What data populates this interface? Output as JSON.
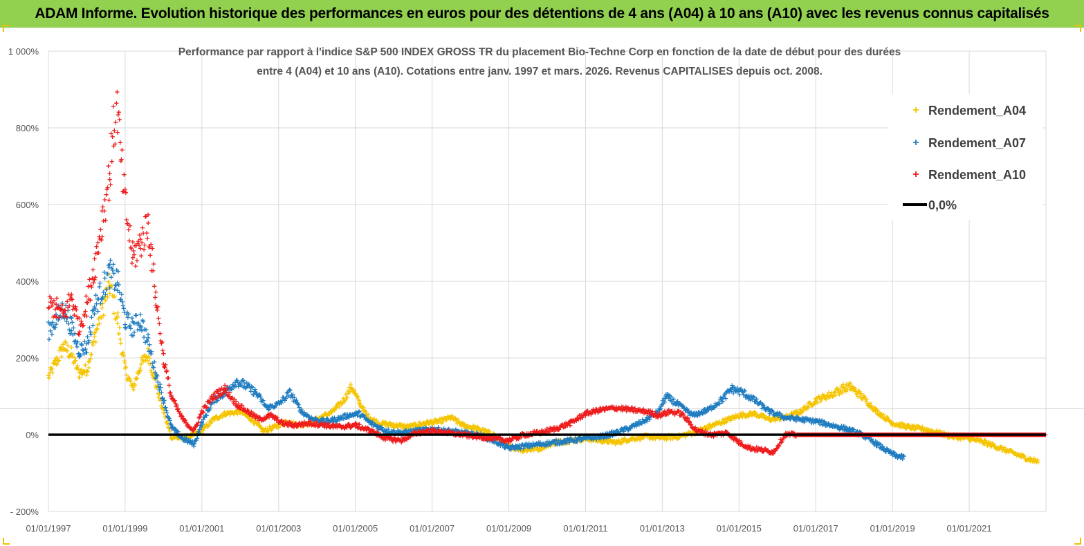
{
  "header": {
    "title": "ADAM Informe. Evolution historique des performances en euros pour des détentions de 4 ans (A04) à 10 ans (A10) avec les revenus connus capitalisés"
  },
  "chart_data": {
    "type": "scatter",
    "title_lines": [
      "Performance par rapport à l'indice S&P 500 INDEX GROSS TR  du placement Bio-Techne Corp en fonction de la date de début pour des durées",
      "entre 4 (A04) et 10 ans (A10). Cotations entre janv. 1997 et mars. 2026. Revenus CAPITALISES depuis oct. 2008."
    ],
    "xlabel": "",
    "ylabel": "",
    "xlim": [
      1997.0,
      2023.0
    ],
    "ylim": [
      -200,
      1000
    ],
    "y_ticks": [
      -200,
      0,
      200,
      400,
      600,
      800,
      1000
    ],
    "y_tick_labels": [
      "- 200%",
      "0%",
      "200%",
      "400%",
      "600%",
      "800%",
      "1 000%"
    ],
    "x_ticks": [
      1997,
      1999,
      2001,
      2003,
      2005,
      2007,
      2009,
      2011,
      2013,
      2015,
      2017,
      2019,
      2021
    ],
    "x_tick_labels": [
      "01/01/1997",
      "01/01/1999",
      "01/01/2001",
      "01/01/2003",
      "01/01/2005",
      "01/01/2007",
      "01/01/2009",
      "01/01/2011",
      "01/01/2013",
      "01/01/2015",
      "01/01/2017",
      "01/01/2019",
      "01/01/2021"
    ],
    "grid": true,
    "legend_position": "top-right",
    "legend": [
      "Rendement_A04",
      "Rendement_A07",
      "Rendement_A10",
      "0,0%"
    ],
    "series": [
      {
        "name": "Rendement_A04",
        "color": "#f5c400",
        "marker": "plus",
        "x": [
          1997.0,
          1997.2,
          1997.4,
          1997.6,
          1997.8,
          1998.0,
          1998.2,
          1998.4,
          1998.6,
          1998.8,
          1999.0,
          1999.2,
          1999.4,
          1999.6,
          1999.8,
          2000.0,
          2000.2,
          2000.5,
          2000.8,
          2001.0,
          2001.3,
          2001.6,
          2002.0,
          2002.3,
          2002.6,
          2002.9,
          2003.2,
          2003.5,
          2003.8,
          2004.1,
          2004.4,
          2004.7,
          2004.9,
          2005.1,
          2005.3,
          2005.6,
          2006.0,
          2006.4,
          2006.8,
          2007.2,
          2007.5,
          2007.8,
          2008.2,
          2008.6,
          2009.0,
          2009.4,
          2009.8,
          2010.2,
          2010.6,
          2011.0,
          2011.4,
          2011.8,
          2012.2,
          2012.6,
          2013.0,
          2013.4,
          2013.8,
          2014.2,
          2014.6,
          2015.0,
          2015.4,
          2015.8,
          2016.2,
          2016.6,
          2017.0,
          2017.4,
          2017.7,
          2017.9,
          2018.2,
          2018.6,
          2019.0,
          2019.4,
          2019.8,
          2020.2,
          2020.6,
          2021.0,
          2021.4,
          2021.8,
          2022.2,
          2022.6,
          2022.8
        ],
        "y": [
          150,
          190,
          230,
          210,
          160,
          170,
          250,
          330,
          390,
          300,
          170,
          120,
          180,
          210,
          130,
          60,
          -5,
          -10,
          0,
          10,
          40,
          55,
          60,
          40,
          10,
          20,
          35,
          25,
          30,
          45,
          60,
          90,
          125,
          85,
          50,
          30,
          25,
          20,
          30,
          35,
          45,
          25,
          15,
          0,
          -30,
          -40,
          -35,
          -20,
          -15,
          -10,
          -15,
          -20,
          -10,
          -5,
          -8,
          -5,
          5,
          20,
          35,
          50,
          55,
          40,
          45,
          60,
          90,
          105,
          120,
          125,
          100,
          60,
          30,
          20,
          15,
          5,
          -5,
          -10,
          -20,
          -35,
          -50,
          -65,
          -70
        ]
      },
      {
        "name": "Rendement_A07",
        "color": "#1f7cc0",
        "marker": "plus",
        "x": [
          1997.0,
          1997.2,
          1997.4,
          1997.6,
          1997.8,
          1998.0,
          1998.2,
          1998.4,
          1998.6,
          1998.8,
          1999.0,
          1999.2,
          1999.4,
          1999.6,
          1999.8,
          2000.0,
          2000.2,
          2000.5,
          2000.8,
          2001.0,
          2001.3,
          2001.6,
          2001.9,
          2002.1,
          2002.4,
          2002.7,
          2003.0,
          2003.3,
          2003.6,
          2003.9,
          2004.2,
          2004.5,
          2004.8,
          2005.1,
          2005.4,
          2005.8,
          2006.2,
          2006.6,
          2007.0,
          2007.4,
          2007.8,
          2008.2,
          2008.6,
          2009.0,
          2009.4,
          2009.8,
          2010.2,
          2010.6,
          2011.0,
          2011.4,
          2011.8,
          2012.2,
          2012.6,
          2012.9,
          2013.1,
          2013.4,
          2013.8,
          2014.2,
          2014.6,
          2014.8,
          2015.1,
          2015.4,
          2015.8,
          2016.2,
          2016.6,
          2017.0,
          2017.4,
          2017.8,
          2018.2,
          2018.6,
          2018.9,
          2019.1,
          2019.3
        ],
        "y": [
          270,
          300,
          330,
          280,
          220,
          230,
          330,
          380,
          420,
          400,
          300,
          280,
          300,
          240,
          160,
          90,
          20,
          -10,
          -25,
          30,
          90,
          110,
          140,
          130,
          110,
          70,
          80,
          110,
          60,
          40,
          35,
          40,
          50,
          55,
          30,
          10,
          5,
          10,
          15,
          10,
          5,
          0,
          -15,
          -35,
          -30,
          -25,
          -20,
          -15,
          -10,
          -5,
          5,
          20,
          40,
          60,
          100,
          80,
          50,
          65,
          95,
          120,
          110,
          90,
          60,
          45,
          40,
          35,
          25,
          15,
          0,
          -25,
          -45,
          -55,
          -60
        ]
      },
      {
        "name": "Rendement_A10",
        "color": "#ee1c1c",
        "marker": "plus",
        "x": [
          1997.0,
          1997.2,
          1997.4,
          1997.6,
          1997.8,
          1998.0,
          1998.2,
          1998.4,
          1998.6,
          1998.7,
          1998.8,
          1998.9,
          1999.0,
          1999.2,
          1999.4,
          1999.6,
          1999.8,
          2000.0,
          2000.2,
          2000.5,
          2000.8,
          2001.0,
          2001.3,
          2001.6,
          2001.9,
          2002.2,
          2002.5,
          2002.8,
          2003.1,
          2003.4,
          2003.8,
          2004.2,
          2004.6,
          2005.0,
          2005.4,
          2005.8,
          2006.2,
          2006.6,
          2007.0,
          2007.4,
          2007.8,
          2008.2,
          2008.6,
          2009.0,
          2009.4,
          2009.8,
          2010.2,
          2010.6,
          2011.0,
          2011.4,
          2011.8,
          2012.2,
          2012.6,
          2012.9,
          2013.2,
          2013.5,
          2013.9,
          2014.3,
          2014.7,
          2015.0,
          2015.3,
          2015.6,
          2015.9,
          2016.2,
          2016.6,
          2017.0,
          2017.5,
          2018.0,
          2018.5,
          2019.0,
          2019.5,
          2020.0,
          2020.5,
          2021.0,
          2021.5,
          2022.0,
          2022.5,
          2023.0
        ],
        "y": [
          340,
          330,
          310,
          360,
          280,
          340,
          440,
          560,
          680,
          800,
          850,
          700,
          600,
          460,
          500,
          550,
          360,
          200,
          100,
          40,
          10,
          60,
          100,
          120,
          80,
          60,
          40,
          50,
          30,
          25,
          30,
          25,
          20,
          25,
          10,
          -10,
          -15,
          5,
          10,
          5,
          0,
          -5,
          -10,
          -15,
          0,
          5,
          15,
          30,
          55,
          65,
          70,
          65,
          60,
          50,
          60,
          55,
          10,
          0,
          5,
          -20,
          -35,
          -40,
          -45,
          0,
          0,
          0,
          0,
          0,
          0,
          0,
          0,
          0,
          0,
          0,
          0,
          0,
          0,
          0
        ]
      },
      {
        "name": "0,0%",
        "color": "#000000",
        "marker": "line",
        "x": [
          1997.0,
          2023.0
        ],
        "y": [
          0,
          0
        ]
      }
    ]
  }
}
